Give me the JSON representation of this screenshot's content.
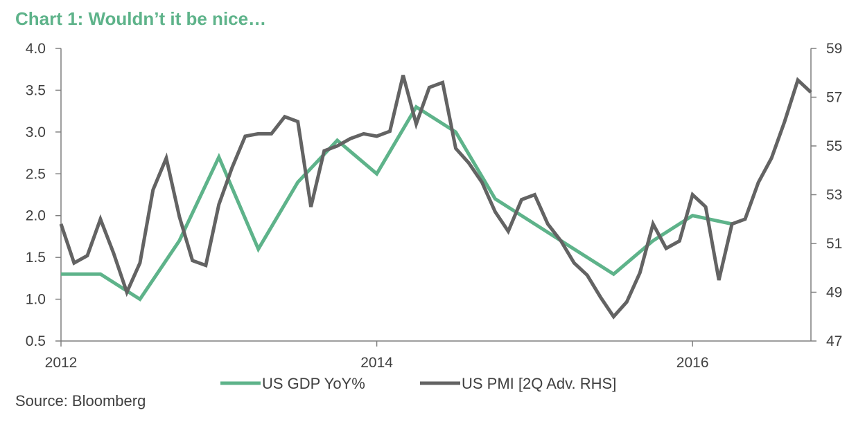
{
  "title": "Chart 1: Wouldn’t it be nice…",
  "source": "Source: Bloomberg",
  "colors": {
    "title": "#5eb38a",
    "gdp": "#5eb38a",
    "pmi": "#636363",
    "axis": "#7f7f7f",
    "text": "#404040"
  },
  "chart_data": {
    "type": "line",
    "title": "Chart 1: Wouldn’t it be nice…",
    "xlabel": "",
    "ylabel": "",
    "x_ticks": [
      2012,
      2014,
      2016
    ],
    "xlim": [
      2012,
      2016.75
    ],
    "y_left": {
      "lim": [
        0.5,
        4.0
      ],
      "ticks": [
        "0.5",
        "1.0",
        "1.5",
        "2.0",
        "2.5",
        "3.0",
        "3.5",
        "4.0"
      ]
    },
    "y_right": {
      "lim": [
        47,
        59
      ],
      "ticks": [
        "47",
        "49",
        "51",
        "53",
        "55",
        "57",
        "59"
      ]
    },
    "grid": false,
    "legend": "bottom",
    "series": [
      {
        "name": "US GDP YoY%",
        "axis": "left",
        "color": "#5eb38a",
        "x": [
          2012.0,
          2012.25,
          2012.5,
          2012.75,
          2013.0,
          2013.25,
          2013.5,
          2013.75,
          2014.0,
          2014.25,
          2014.5,
          2014.75,
          2015.0,
          2015.25,
          2015.5,
          2015.75,
          2016.0,
          2016.25
        ],
        "y": [
          1.3,
          1.3,
          1.0,
          1.7,
          2.7,
          1.6,
          2.4,
          2.9,
          2.5,
          3.3,
          3.0,
          2.2,
          1.9,
          1.6,
          1.3,
          1.7,
          2.0,
          1.9
        ]
      },
      {
        "name": "US PMI [2Q Adv. RHS]",
        "axis": "right",
        "color": "#636363",
        "x": [
          2012.0,
          2012.083,
          2012.167,
          2012.25,
          2012.333,
          2012.417,
          2012.5,
          2012.583,
          2012.667,
          2012.75,
          2012.833,
          2012.917,
          2013.0,
          2013.083,
          2013.167,
          2013.25,
          2013.333,
          2013.417,
          2013.5,
          2013.583,
          2013.667,
          2013.75,
          2013.833,
          2013.917,
          2014.0,
          2014.083,
          2014.167,
          2014.25,
          2014.333,
          2014.417,
          2014.5,
          2014.583,
          2014.667,
          2014.75,
          2014.833,
          2014.917,
          2015.0,
          2015.083,
          2015.167,
          2015.25,
          2015.333,
          2015.417,
          2015.5,
          2015.583,
          2015.667,
          2015.75,
          2015.833,
          2015.917,
          2016.0,
          2016.083,
          2016.167,
          2016.25,
          2016.333,
          2016.417,
          2016.5,
          2016.583,
          2016.667,
          2016.75
        ],
        "y": [
          51.8,
          50.2,
          50.5,
          52.0,
          50.6,
          49.0,
          50.2,
          53.2,
          54.5,
          52.1,
          50.3,
          50.1,
          52.6,
          54.1,
          55.4,
          55.5,
          55.5,
          56.2,
          56.0,
          52.5,
          54.8,
          55.0,
          55.3,
          55.5,
          55.4,
          55.6,
          57.9,
          55.9,
          57.4,
          57.6,
          54.9,
          54.3,
          53.5,
          52.3,
          51.5,
          52.8,
          53.0,
          51.8,
          51.1,
          50.2,
          49.7,
          48.8,
          48.0,
          48.6,
          49.8,
          51.8,
          50.8,
          51.1,
          53.0,
          52.5,
          49.5,
          51.8,
          52.0,
          53.5,
          54.5,
          56.0,
          57.7,
          57.2
        ]
      }
    ]
  }
}
